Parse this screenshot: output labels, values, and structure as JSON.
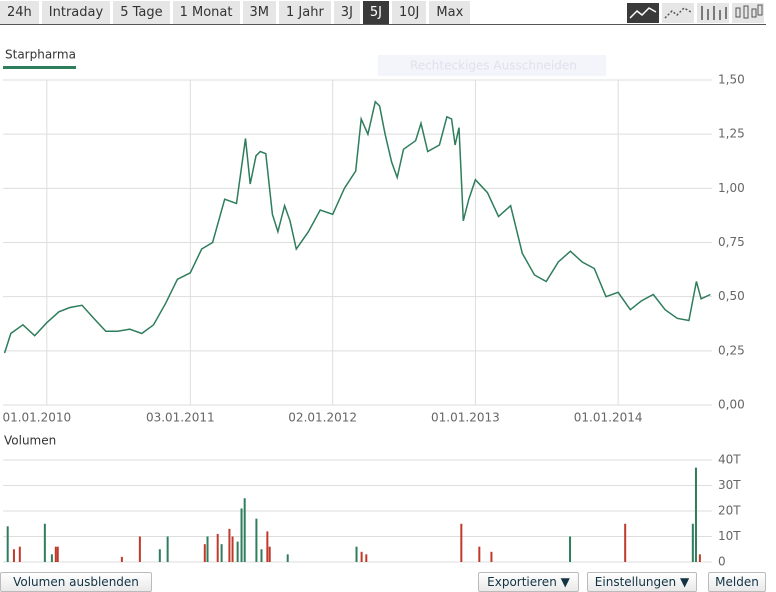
{
  "toolbar": {
    "buttons": [
      "24h",
      "Intraday",
      "5 Tage",
      "1 Monat",
      "3M",
      "1 Jahr",
      "3J",
      "5J",
      "10J",
      "Max"
    ],
    "active_index": 7
  },
  "chart_data": [
    {
      "type": "line",
      "overlay_hint": "Rechteckiges Ausschneiden",
      "series": [
        {
          "name": "Starpharma",
          "color": "#2e7d5b",
          "x": [
            "2009-09-15",
            "2009-10-01",
            "2009-11-01",
            "2009-12-01",
            "2010-01-01",
            "2010-02-01",
            "2010-03-01",
            "2010-04-01",
            "2010-05-01",
            "2010-06-01",
            "2010-07-01",
            "2010-08-01",
            "2010-09-01",
            "2010-10-01",
            "2010-11-01",
            "2010-12-01",
            "2011-01-03",
            "2011-02-01",
            "2011-03-01",
            "2011-04-01",
            "2011-05-01",
            "2011-05-24",
            "2011-06-05",
            "2011-06-20",
            "2011-07-01",
            "2011-07-15",
            "2011-08-01",
            "2011-08-15",
            "2011-09-01",
            "2011-09-15",
            "2011-10-01",
            "2011-11-01",
            "2011-12-01",
            "2012-01-02",
            "2012-02-01",
            "2012-03-01",
            "2012-03-15",
            "2012-04-01",
            "2012-04-20",
            "2012-05-01",
            "2012-05-15",
            "2012-06-01",
            "2012-06-15",
            "2012-07-01",
            "2012-08-01",
            "2012-08-15",
            "2012-09-01",
            "2012-10-01",
            "2012-10-20",
            "2012-11-01",
            "2012-11-10",
            "2012-11-20",
            "2012-12-01",
            "2012-12-15",
            "2013-01-01",
            "2013-02-01",
            "2013-03-01",
            "2013-04-01",
            "2013-05-01",
            "2013-06-01",
            "2013-07-01",
            "2013-08-01",
            "2013-09-01",
            "2013-10-01",
            "2013-11-01",
            "2013-12-01",
            "2014-01-01",
            "2014-02-01",
            "2014-03-01",
            "2014-04-01",
            "2014-05-01",
            "2014-06-01",
            "2014-07-01",
            "2014-07-20",
            "2014-08-01",
            "2014-08-25"
          ],
          "values": [
            0.24,
            0.33,
            0.37,
            0.32,
            0.38,
            0.43,
            0.45,
            0.46,
            0.4,
            0.34,
            0.34,
            0.35,
            0.33,
            0.37,
            0.47,
            0.58,
            0.61,
            0.72,
            0.75,
            0.95,
            0.93,
            1.23,
            1.02,
            1.15,
            1.17,
            1.16,
            0.88,
            0.8,
            0.92,
            0.85,
            0.72,
            0.8,
            0.9,
            0.88,
            1.0,
            1.08,
            1.32,
            1.25,
            1.4,
            1.38,
            1.25,
            1.12,
            1.05,
            1.18,
            1.22,
            1.3,
            1.17,
            1.2,
            1.33,
            1.32,
            1.2,
            1.28,
            0.85,
            0.95,
            1.04,
            0.98,
            0.87,
            0.92,
            0.7,
            0.6,
            0.57,
            0.66,
            0.71,
            0.66,
            0.63,
            0.5,
            0.52,
            0.44,
            0.48,
            0.51,
            0.44,
            0.4,
            0.39,
            0.57,
            0.49,
            0.51
          ]
        }
      ],
      "xlim": [
        "2009-09-11",
        "2014-08-29"
      ],
      "xticks": [
        {
          "value": "2010-01-01",
          "label": "01.01.2010"
        },
        {
          "value": "2011-01-03",
          "label": "03.01.2011"
        },
        {
          "value": "2012-01-02",
          "label": "02.01.2012"
        },
        {
          "value": "2013-01-01",
          "label": "01.01.2013"
        },
        {
          "value": "2014-01-01",
          "label": "01.01.2014"
        }
      ],
      "ylim": [
        0,
        1.5
      ],
      "yticks": [
        {
          "value": 0,
          "label": "0,00"
        },
        {
          "value": 0.25,
          "label": "0,25"
        },
        {
          "value": 0.5,
          "label": "0,50"
        },
        {
          "value": 0.75,
          "label": "0,75"
        },
        {
          "value": 1,
          "label": "1,00"
        },
        {
          "value": 1.25,
          "label": "1,25"
        },
        {
          "value": 1.5,
          "label": "1,50"
        }
      ],
      "grid": true
    },
    {
      "type": "bar",
      "title": "Volumen",
      "x": [
        "2009-09-23",
        "2009-10-09",
        "2009-10-24",
        "2009-12-27",
        "2010-01-14",
        "2010-01-24",
        "2010-01-29",
        "2010-07-12",
        "2010-08-27",
        "2010-10-17",
        "2010-11-06",
        "2011-02-09",
        "2011-02-16",
        "2011-03-14",
        "2011-03-24",
        "2011-04-13",
        "2011-04-21",
        "2011-05-04",
        "2011-05-14",
        "2011-05-22",
        "2011-06-21",
        "2011-07-04",
        "2011-07-19",
        "2011-07-25",
        "2011-09-09",
        "2012-03-03",
        "2012-03-16",
        "2012-03-28",
        "2012-11-26",
        "2013-01-11",
        "2013-02-11",
        "2013-08-31",
        "2014-01-19",
        "2014-07-11",
        "2014-07-19",
        "2014-07-29"
      ],
      "values": [
        14,
        5,
        6,
        15,
        3,
        6,
        6,
        2,
        10,
        5,
        10,
        7,
        10,
        11,
        7,
        13,
        10,
        8,
        21,
        25,
        17,
        5,
        12,
        6,
        3,
        6,
        4,
        3,
        15,
        6,
        4,
        10,
        15,
        15,
        37,
        3
      ],
      "colors": [
        "#2e7d5b",
        "#c0392b",
        "#c0392b",
        "#2e7d5b",
        "#2e7d5b",
        "#c0392b",
        "#c0392b",
        "#c0392b",
        "#c0392b",
        "#2e7d5b",
        "#2e7d5b",
        "#c0392b",
        "#2e7d5b",
        "#c0392b",
        "#2e7d5b",
        "#c0392b",
        "#c0392b",
        "#2e7d5b",
        "#2e7d5b",
        "#2e7d5b",
        "#2e7d5b",
        "#2e7d5b",
        "#c0392b",
        "#c0392b",
        "#2e7d5b",
        "#2e7d5b",
        "#c0392b",
        "#c0392b",
        "#c0392b",
        "#c0392b",
        "#c0392b",
        "#2e7d5b",
        "#c0392b",
        "#2e7d5b",
        "#2e7d5b",
        "#c0392b"
      ],
      "xlim": [
        "2009-09-11",
        "2014-08-29"
      ],
      "ylim": [
        0,
        40
      ],
      "yticks": [
        0,
        {
          "value": 10,
          "label": "10T"
        },
        {
          "value": 20,
          "label": "20T"
        },
        {
          "value": 30,
          "label": "30T"
        },
        {
          "value": 40,
          "label": "40T"
        }
      ],
      "grid": true
    }
  ],
  "bottom_buttons": [
    "Volumen ausblenden",
    "Exportieren ▼",
    "Einstellungen ▼",
    "Melden"
  ]
}
